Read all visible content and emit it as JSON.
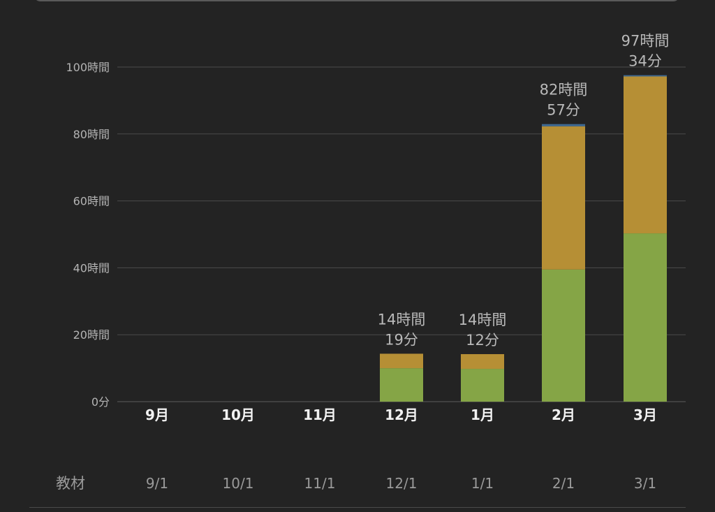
{
  "colors": {
    "green": "#85a546",
    "gold": "#b68f35",
    "blue": "#3f6a93",
    "grid": "#4b4b4b",
    "axis_label": "#b4b4b4",
    "month_label": "#f2f2f2",
    "date_label": "#9a9a9a",
    "total_label": "#b9b9b9"
  },
  "row_label": "教材",
  "chart_data": {
    "type": "bar",
    "stacked": true,
    "categories": [
      "9月",
      "10月",
      "11月",
      "12月",
      "1月",
      "2月",
      "3月"
    ],
    "dates": [
      "9/1",
      "10/1",
      "11/1",
      "12/1",
      "1/1",
      "2/1",
      "3/1"
    ],
    "series": [
      {
        "color": "#85a546",
        "values": [
          0,
          0,
          0,
          10,
          9.8,
          39.5,
          50.3
        ]
      },
      {
        "color": "#b68f35",
        "values": [
          0,
          0,
          0,
          4.32,
          4.4,
          42.8,
          46.9
        ]
      },
      {
        "color": "#3f6a93",
        "values": [
          0,
          0,
          0,
          0,
          0,
          0.65,
          0.37
        ]
      }
    ],
    "totals": [
      [
        "",
        ""
      ],
      [
        "",
        ""
      ],
      [
        "",
        ""
      ],
      [
        "14時間",
        "19分"
      ],
      [
        "14時間",
        "12分"
      ],
      [
        "82時間",
        "57分"
      ],
      [
        "97時間",
        "34分"
      ]
    ],
    "y_ticks": [
      {
        "value": 0,
        "label": "0分"
      },
      {
        "value": 20,
        "label": "20時間"
      },
      {
        "value": 40,
        "label": "40時間"
      },
      {
        "value": 60,
        "label": "60時間"
      },
      {
        "value": 80,
        "label": "80時間"
      },
      {
        "value": 100,
        "label": "100時間"
      }
    ],
    "ylim": [
      0,
      100
    ],
    "grid": true
  }
}
